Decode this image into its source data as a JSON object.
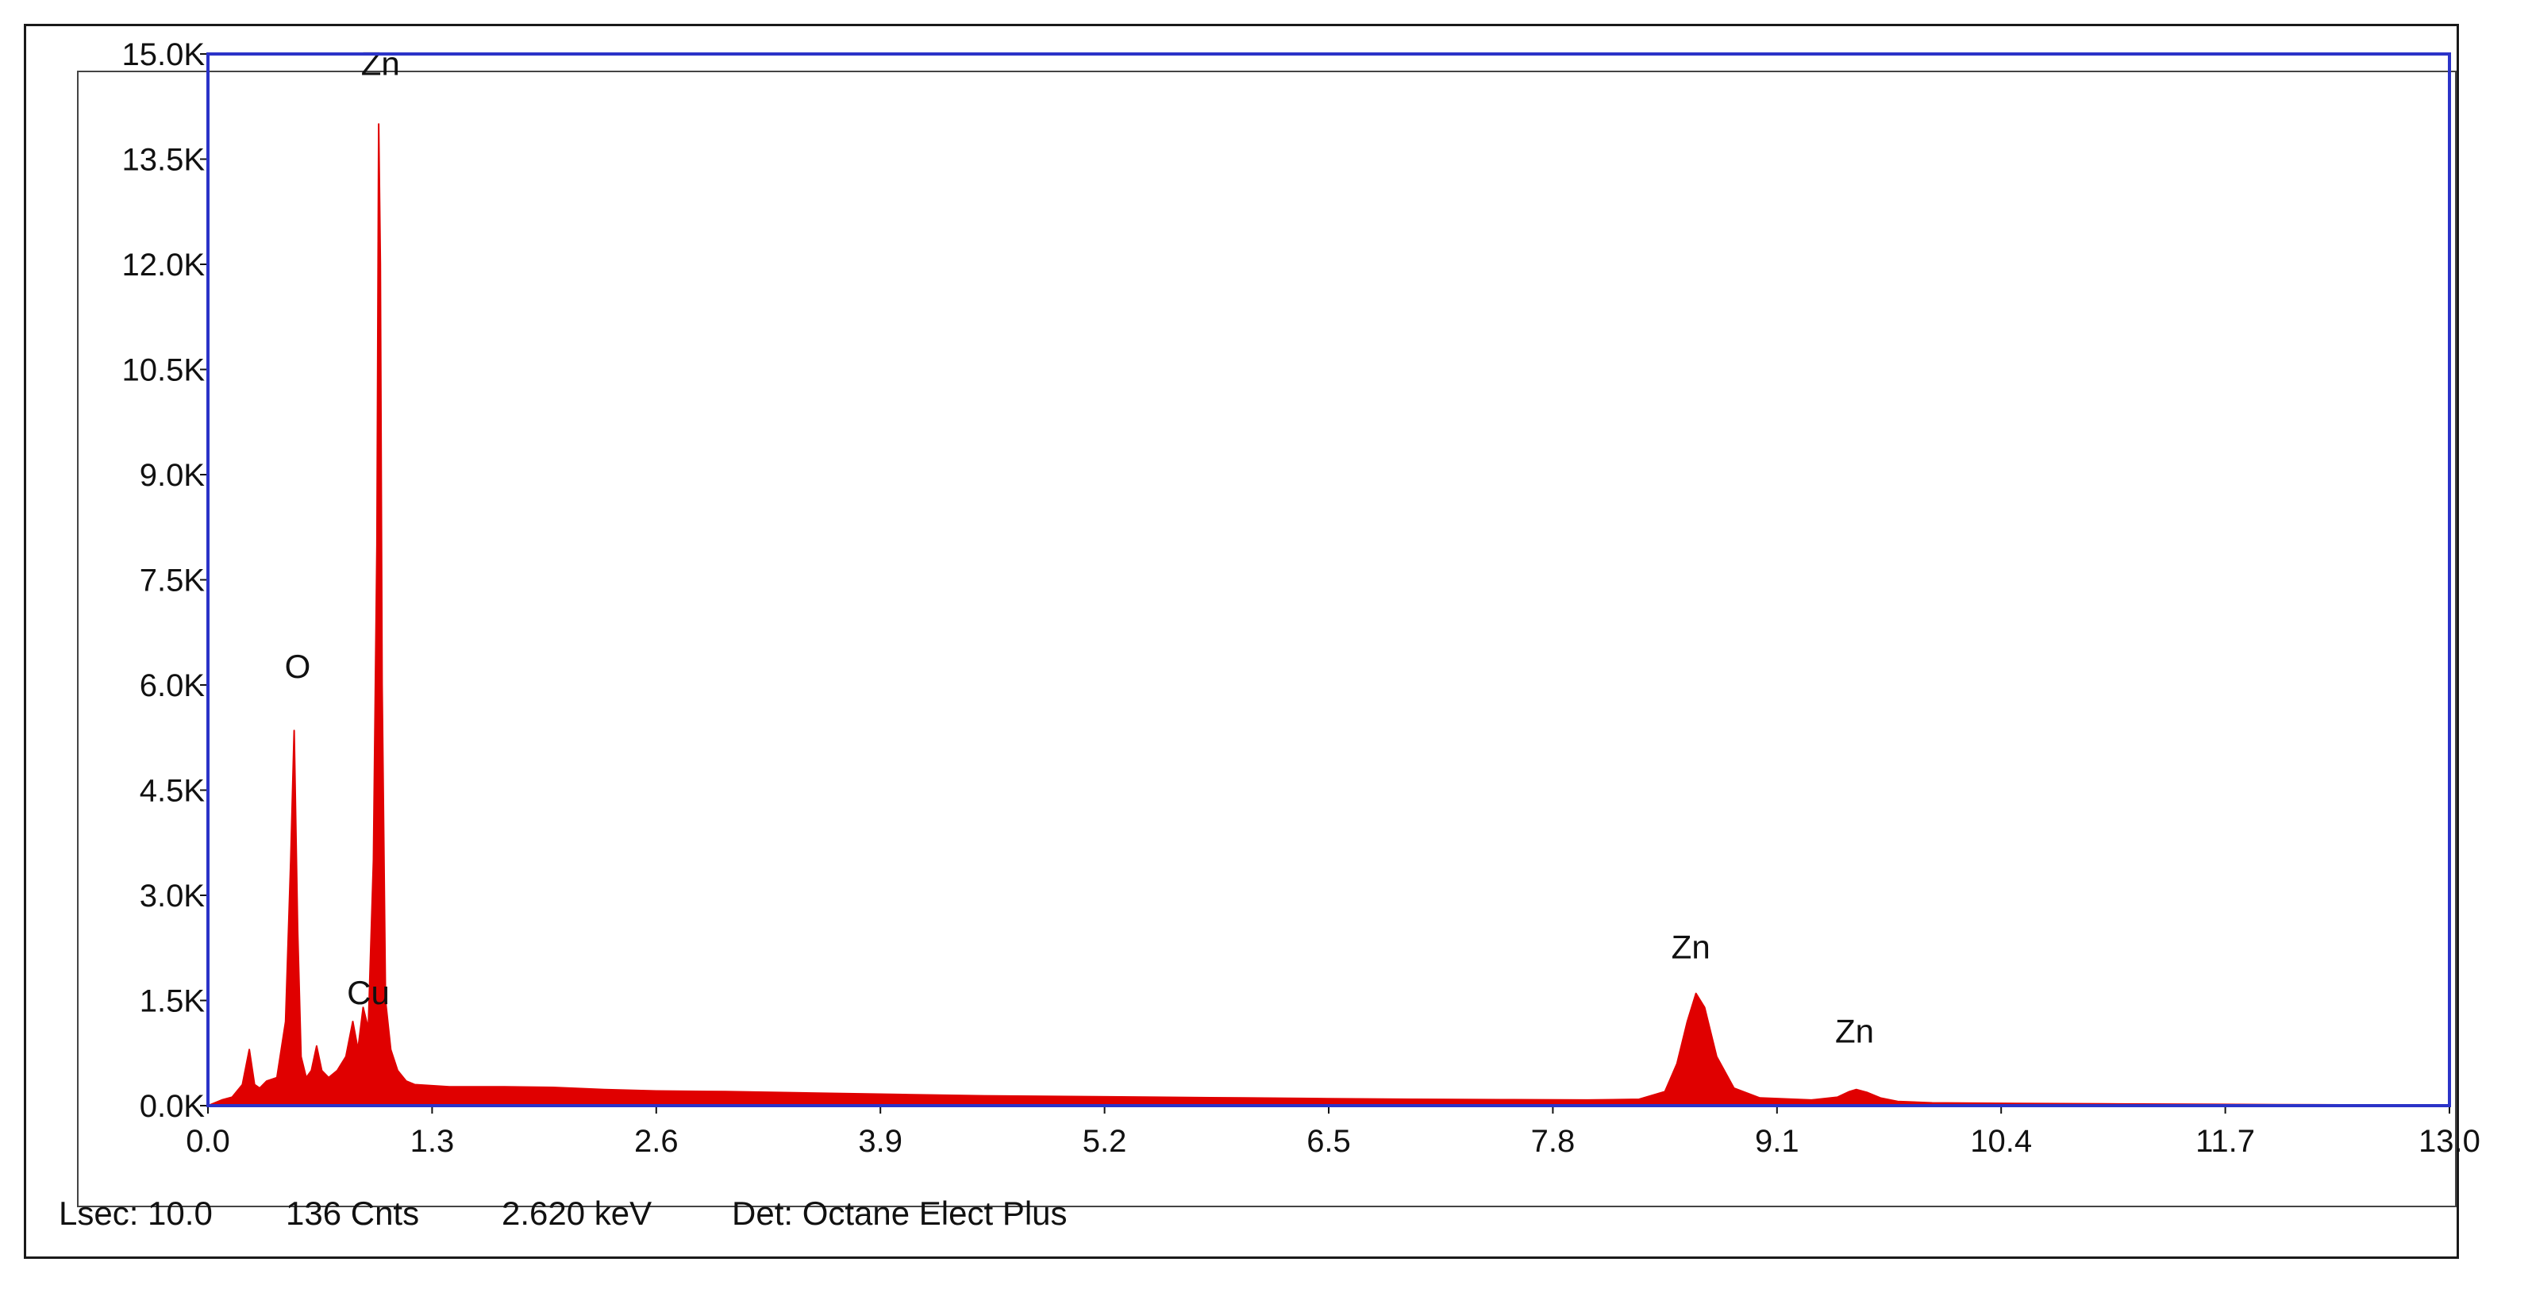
{
  "chart_data": {
    "type": "area",
    "title": "",
    "xlabel": "",
    "ylabel": "",
    "xlim": [
      0.0,
      13.0
    ],
    "ylim": [
      0,
      15000
    ],
    "x_ticks": [
      "0.0",
      "1.3",
      "2.6",
      "3.9",
      "5.2",
      "6.5",
      "7.8",
      "9.1",
      "10.4",
      "11.7",
      "13.0"
    ],
    "y_ticks": [
      "0.0K",
      "1.5K",
      "3.0K",
      "4.5K",
      "6.0K",
      "7.5K",
      "9.0K",
      "10.5K",
      "12.0K",
      "13.5K",
      "15.0K"
    ],
    "grid": false,
    "legend": "none",
    "series": [
      {
        "x": [
          0.0,
          0.08,
          0.14,
          0.2,
          0.24,
          0.27,
          0.3,
          0.34,
          0.4,
          0.45,
          0.48,
          0.5,
          0.52,
          0.54,
          0.57,
          0.6,
          0.63,
          0.66,
          0.7,
          0.75,
          0.8,
          0.84,
          0.87,
          0.9,
          0.93,
          0.96,
          0.98,
          0.99,
          1.0,
          1.01,
          1.03,
          1.06,
          1.1,
          1.15,
          1.2,
          1.4,
          1.7,
          2.0,
          2.3,
          2.6,
          3.0,
          3.5,
          4.0,
          4.5,
          5.0,
          5.5,
          6.0,
          6.5,
          7.0,
          7.5,
          8.0,
          8.3,
          8.45,
          8.52,
          8.58,
          8.63,
          8.68,
          8.75,
          8.85,
          9.0,
          9.3,
          9.45,
          9.52,
          9.56,
          9.62,
          9.7,
          9.8,
          10.0,
          10.5,
          11.0,
          11.5,
          12.0,
          12.5,
          13.0
        ],
        "y": [
          0,
          80,
          120,
          300,
          800,
          300,
          250,
          350,
          400,
          1200,
          3500,
          5350,
          2500,
          700,
          400,
          500,
          850,
          500,
          400,
          500,
          700,
          1200,
          800,
          1400,
          1100,
          3500,
          8000,
          14000,
          12000,
          6000,
          1500,
          800,
          500,
          350,
          300,
          270,
          270,
          260,
          230,
          210,
          200,
          180,
          160,
          140,
          130,
          120,
          110,
          100,
          90,
          85,
          80,
          90,
          200,
          600,
          1200,
          1600,
          1400,
          700,
          250,
          110,
          80,
          120,
          200,
          230,
          190,
          110,
          60,
          40,
          30,
          25,
          20,
          15,
          10,
          10
        ],
        "color": "#e00000"
      }
    ],
    "annotations": [
      {
        "text": "Zn",
        "x": 1.0,
        "y": 14700
      },
      {
        "text": "O",
        "x": 0.52,
        "y": 6100
      },
      {
        "text": "Cu",
        "x": 0.93,
        "y": 1450
      },
      {
        "text": "Zn",
        "x": 8.6,
        "y": 2100
      },
      {
        "text": "Zn",
        "x": 9.55,
        "y": 900
      }
    ],
    "axis_color": "#2b33c8"
  },
  "status": {
    "lsec": "Lsec: 10.0",
    "cnts": "136 Cnts",
    "kev": "2.620 keV",
    "det": "Det: Octane Elect Plus"
  }
}
